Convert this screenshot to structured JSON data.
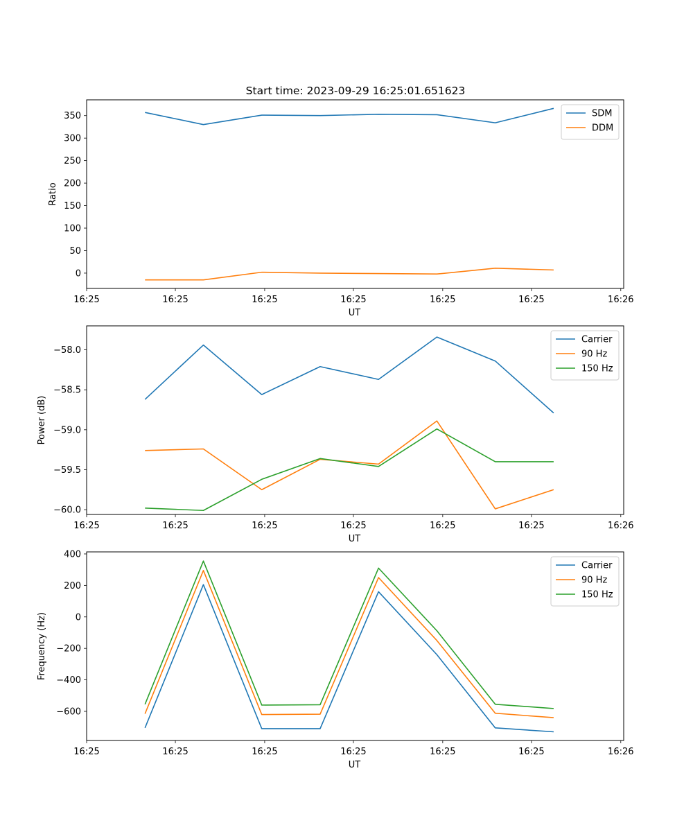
{
  "figure": {
    "title": "Start time: 2023-09-29 16:25:01.651623"
  },
  "colors": {
    "blue": "#1f77b4",
    "orange": "#ff7f0e",
    "green": "#2ca02c"
  },
  "chart_data": [
    {
      "type": "line",
      "title": "Start time: 2023-09-29 16:25:01.651623",
      "xlabel": "UT",
      "ylabel": "Ratio",
      "x_index": [
        1,
        2,
        3,
        4,
        5,
        6,
        7,
        8
      ],
      "xlim": [
        0,
        9.2
      ],
      "x_ticks": [
        0,
        1.52,
        3.05,
        4.57,
        6.1,
        7.62,
        9.15
      ],
      "x_tick_labels": [
        "16:25",
        "16:25",
        "16:25",
        "16:25",
        "16:25",
        "16:25",
        "16:26"
      ],
      "ylim": [
        -34,
        385
      ],
      "y_ticks": [
        0,
        50,
        100,
        150,
        200,
        250,
        300,
        350
      ],
      "y_tick_labels": [
        "0",
        "50",
        "100",
        "150",
        "200",
        "250",
        "300",
        "350"
      ],
      "legend_position": "upper-right",
      "series": [
        {
          "name": "SDM",
          "color": "blue",
          "values": [
            357,
            330,
            351,
            350,
            353,
            352,
            334,
            366
          ]
        },
        {
          "name": "DDM",
          "color": "orange",
          "values": [
            -15,
            -15,
            2,
            0,
            -1,
            -2,
            11,
            7
          ]
        }
      ]
    },
    {
      "type": "line",
      "xlabel": "UT",
      "ylabel": "Power (dB)",
      "x_index": [
        1,
        2,
        3,
        4,
        5,
        6,
        7,
        8
      ],
      "xlim": [
        0,
        9.2
      ],
      "x_ticks": [
        0,
        1.52,
        3.05,
        4.57,
        6.1,
        7.62,
        9.15
      ],
      "x_tick_labels": [
        "16:25",
        "16:25",
        "16:25",
        "16:25",
        "16:25",
        "16:25",
        "16:26"
      ],
      "ylim": [
        -60.06,
        -57.7
      ],
      "y_ticks": [
        -58.0,
        -58.5,
        -59.0,
        -59.5,
        -60.0
      ],
      "y_tick_labels": [
        "−58.0",
        "−58.5",
        "−59.0",
        "−59.5",
        "−60.0"
      ],
      "legend_position": "upper-right",
      "series": [
        {
          "name": "Carrier",
          "color": "blue",
          "values": [
            -58.62,
            -57.94,
            -58.56,
            -58.21,
            -58.37,
            -57.84,
            -58.14,
            -58.79
          ]
        },
        {
          "name": "90 Hz",
          "color": "orange",
          "values": [
            -59.26,
            -59.24,
            -59.75,
            -59.37,
            -59.43,
            -58.89,
            -59.99,
            -59.75
          ]
        },
        {
          "name": "150 Hz",
          "color": "green",
          "values": [
            -59.98,
            -60.01,
            -59.62,
            -59.36,
            -59.46,
            -58.99,
            -59.4,
            -59.4
          ]
        }
      ]
    },
    {
      "type": "line",
      "xlabel": "UT",
      "ylabel": "Frequency (Hz)",
      "x_index": [
        1,
        2,
        3,
        4,
        5,
        6,
        7,
        8
      ],
      "xlim": [
        0,
        9.2
      ],
      "x_ticks": [
        0,
        1.52,
        3.05,
        4.57,
        6.1,
        7.62,
        9.15
      ],
      "x_tick_labels": [
        "16:25",
        "16:25",
        "16:25",
        "16:25",
        "16:25",
        "16:25",
        "16:26"
      ],
      "ylim": [
        -785,
        413
      ],
      "y_ticks": [
        400,
        200,
        0,
        -200,
        -400,
        -600
      ],
      "y_tick_labels": [
        "400",
        "200",
        "0",
        "−200",
        "−400",
        "−600"
      ],
      "legend_position": "upper-right",
      "series": [
        {
          "name": "Carrier",
          "color": "blue",
          "values": [
            -705,
            205,
            -710,
            -710,
            160,
            -240,
            -705,
            -730
          ]
        },
        {
          "name": "90 Hz",
          "color": "orange",
          "values": [
            -615,
            295,
            -620,
            -618,
            250,
            -150,
            -612,
            -640
          ]
        },
        {
          "name": "150 Hz",
          "color": "green",
          "values": [
            -555,
            355,
            -560,
            -558,
            310,
            -88,
            -555,
            -582
          ]
        }
      ]
    }
  ]
}
